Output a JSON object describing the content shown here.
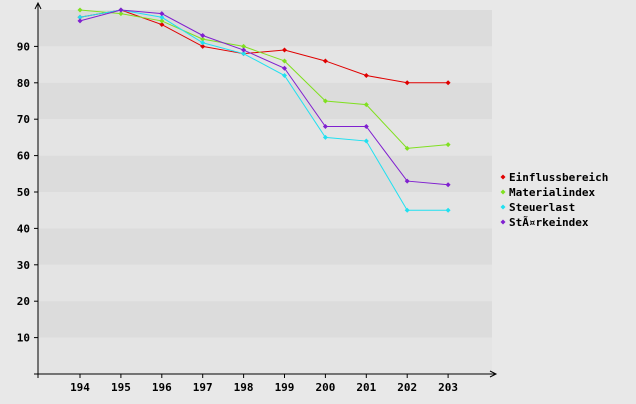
{
  "chart_data": {
    "type": "line",
    "categories": [
      "194",
      "195",
      "196",
      "197",
      "198",
      "199",
      "200",
      "201",
      "202",
      "203"
    ],
    "y_ticks": [
      10,
      20,
      30,
      40,
      50,
      60,
      70,
      80,
      90
    ],
    "ylim": [
      0,
      100
    ],
    "grid": "horizontal alternating bands",
    "legend_position": "right",
    "series": [
      {
        "name": "Einflussbereich",
        "color": "#e00000",
        "values": [
          98,
          100,
          96,
          90,
          88,
          89,
          86,
          82,
          80,
          80
        ]
      },
      {
        "name": "Materialindex",
        "color": "#80e020",
        "values": [
          100,
          99,
          97,
          92,
          90,
          86,
          75,
          74,
          62,
          63
        ]
      },
      {
        "name": "Steuerlast",
        "color": "#20e0f0",
        "values": [
          98,
          100,
          98,
          91,
          88,
          82,
          65,
          64,
          45,
          45
        ]
      },
      {
        "name": "StÃ¤rkeindex",
        "color": "#8020d0",
        "values": [
          97,
          100,
          99,
          93,
          89,
          84,
          68,
          68,
          53,
          52
        ]
      }
    ]
  }
}
